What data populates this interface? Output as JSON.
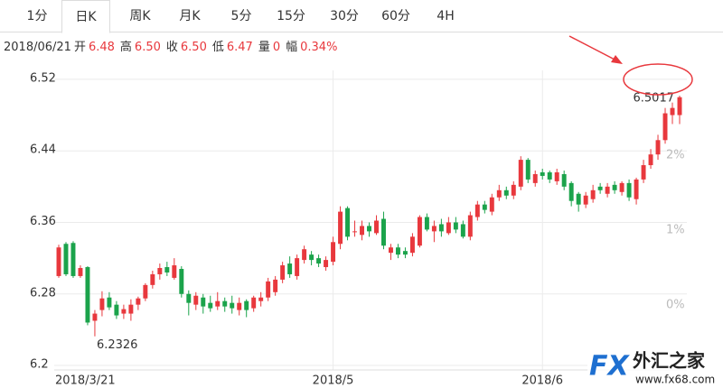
{
  "ui": {
    "tabs": [
      "1分",
      "日K",
      "周K",
      "月K",
      "5分",
      "15分",
      "30分",
      "60分",
      "4H"
    ],
    "active_tab": 1,
    "date": "2018/06/21",
    "quote": [
      {
        "label": "开",
        "value": "6.48"
      },
      {
        "label": "高",
        "value": "6.50"
      },
      {
        "label": "收",
        "value": "6.50"
      },
      {
        "label": "低",
        "value": "6.47"
      },
      {
        "label": "量",
        "value": "0"
      },
      {
        "label": "幅",
        "value": "0.34%"
      }
    ],
    "watermark": {
      "brand": "FX",
      "name": "外汇之家",
      "url": "www.fx68.com"
    }
  },
  "chart_data": {
    "type": "candlestick",
    "categories": [
      "2018/3/21",
      null,
      null,
      null,
      null,
      null,
      null,
      null,
      null,
      null,
      null,
      null,
      null,
      null,
      null,
      null,
      null,
      null,
      null,
      null,
      null,
      null,
      null,
      null,
      null,
      null,
      null,
      null,
      null,
      null,
      null,
      null,
      null,
      null,
      null,
      null,
      null,
      null,
      "2018/5",
      null,
      null,
      null,
      null,
      null,
      null,
      null,
      null,
      null,
      null,
      null,
      null,
      null,
      null,
      null,
      null,
      null,
      null,
      null,
      null,
      null,
      null,
      null,
      null,
      null,
      null,
      null,
      null,
      "2018/6",
      null,
      null,
      null,
      null,
      null,
      null,
      null,
      null,
      null,
      null,
      null,
      null,
      null,
      null,
      null,
      null,
      null,
      null,
      null
    ],
    "open": [
      6.3,
      6.336,
      6.337,
      6.3,
      6.31,
      6.25,
      6.262,
      6.276,
      6.268,
      6.258,
      6.258,
      6.268,
      6.275,
      6.29,
      6.302,
      6.31,
      6.298,
      6.308,
      6.28,
      6.268,
      6.276,
      6.27,
      6.266,
      6.272,
      6.27,
      6.262,
      6.272,
      6.264,
      6.272,
      6.276,
      6.282,
      6.296,
      6.314,
      6.3,
      6.318,
      6.324,
      6.32,
      6.31,
      6.316,
      6.336,
      6.376,
      6.35,
      6.346,
      6.356,
      6.348,
      6.364,
      6.326,
      6.332,
      6.328,
      6.326,
      6.334,
      6.366,
      6.35,
      6.358,
      6.348,
      6.36,
      6.358,
      6.344,
      6.366,
      6.38,
      6.372,
      6.388,
      6.396,
      6.39,
      6.4,
      6.43,
      6.404,
      6.416,
      6.416,
      6.406,
      6.414,
      6.404,
      6.392,
      6.38,
      6.386,
      6.4,
      6.392,
      6.402,
      6.394,
      6.404,
      6.386,
      6.408,
      6.424,
      6.436,
      6.452,
      6.48,
      6.48
    ],
    "high": [
      6.335,
      6.338,
      6.339,
      6.312,
      6.311,
      6.262,
      6.283,
      6.282,
      6.272,
      6.268,
      6.274,
      6.277,
      6.292,
      6.306,
      6.314,
      6.316,
      6.32,
      6.311,
      6.284,
      6.282,
      6.28,
      6.278,
      6.282,
      6.276,
      6.278,
      6.276,
      6.274,
      6.278,
      6.282,
      6.298,
      6.3,
      6.316,
      6.322,
      6.324,
      6.334,
      6.328,
      6.324,
      6.322,
      6.344,
      6.378,
      6.378,
      6.362,
      6.362,
      6.36,
      6.368,
      6.372,
      6.336,
      6.336,
      6.332,
      6.348,
      6.368,
      6.37,
      6.362,
      6.364,
      6.366,
      6.366,
      6.362,
      6.372,
      6.384,
      6.384,
      6.392,
      6.402,
      6.4,
      6.406,
      6.434,
      6.432,
      6.418,
      6.42,
      6.418,
      6.42,
      6.418,
      6.406,
      6.394,
      6.394,
      6.402,
      6.404,
      6.404,
      6.406,
      6.406,
      6.408,
      6.41,
      6.43,
      6.442,
      6.458,
      6.488,
      6.494,
      6.5017
    ],
    "low": [
      6.298,
      6.3,
      6.298,
      6.298,
      6.245,
      6.2326,
      6.255,
      6.262,
      6.252,
      6.252,
      6.25,
      6.262,
      6.272,
      6.286,
      6.296,
      6.3,
      6.296,
      6.276,
      6.256,
      6.262,
      6.258,
      6.26,
      6.262,
      6.26,
      6.258,
      6.256,
      6.254,
      6.26,
      6.266,
      6.272,
      6.278,
      6.292,
      6.298,
      6.296,
      6.314,
      6.312,
      6.31,
      6.306,
      6.312,
      6.33,
      6.34,
      6.344,
      6.34,
      6.344,
      6.346,
      6.33,
      6.318,
      6.32,
      6.32,
      6.322,
      6.332,
      6.35,
      6.338,
      6.344,
      6.346,
      6.348,
      6.342,
      6.34,
      6.362,
      6.37,
      6.368,
      6.384,
      6.386,
      6.386,
      6.396,
      6.404,
      6.4,
      6.408,
      6.404,
      6.402,
      6.396,
      6.378,
      6.372,
      6.376,
      6.382,
      6.392,
      6.388,
      6.392,
      6.39,
      6.384,
      6.38,
      6.404,
      6.42,
      6.43,
      6.448,
      6.47,
      6.47
    ],
    "close": [
      6.332,
      6.302,
      6.3,
      6.309,
      6.248,
      6.258,
      6.275,
      6.265,
      6.256,
      6.263,
      6.268,
      6.275,
      6.29,
      6.302,
      6.309,
      6.304,
      6.312,
      6.28,
      6.27,
      6.278,
      6.266,
      6.264,
      6.272,
      6.266,
      6.264,
      6.27,
      6.262,
      6.276,
      6.276,
      6.294,
      6.296,
      6.312,
      6.302,
      6.32,
      6.33,
      6.318,
      6.314,
      6.318,
      6.338,
      6.372,
      6.344,
      6.35,
      6.356,
      6.35,
      6.362,
      6.334,
      6.332,
      6.324,
      6.324,
      6.344,
      6.366,
      6.352,
      6.356,
      6.35,
      6.36,
      6.352,
      6.344,
      6.368,
      6.38,
      6.374,
      6.388,
      6.396,
      6.39,
      6.402,
      6.43,
      6.408,
      6.414,
      6.412,
      6.408,
      6.416,
      6.4,
      6.384,
      6.38,
      6.39,
      6.396,
      6.396,
      6.4,
      6.396,
      6.404,
      6.388,
      6.408,
      6.424,
      6.436,
      6.452,
      6.482,
      6.488,
      6.5
    ],
    "up_color": "#e8383d",
    "down_color": "#1ba34b",
    "ylim": [
      6.195,
      6.53
    ],
    "yticks": [
      6.2,
      6.28,
      6.36,
      6.44,
      6.52
    ],
    "y2lim": [
      -0.867,
      3.133
    ],
    "y2ticks": [
      {
        "value": 0,
        "label": "0%"
      },
      {
        "value": 1,
        "label": "1%"
      },
      {
        "value": 2,
        "label": "2%"
      }
    ],
    "grid": true,
    "annotations": [
      6.2326,
      6.5017
    ]
  }
}
